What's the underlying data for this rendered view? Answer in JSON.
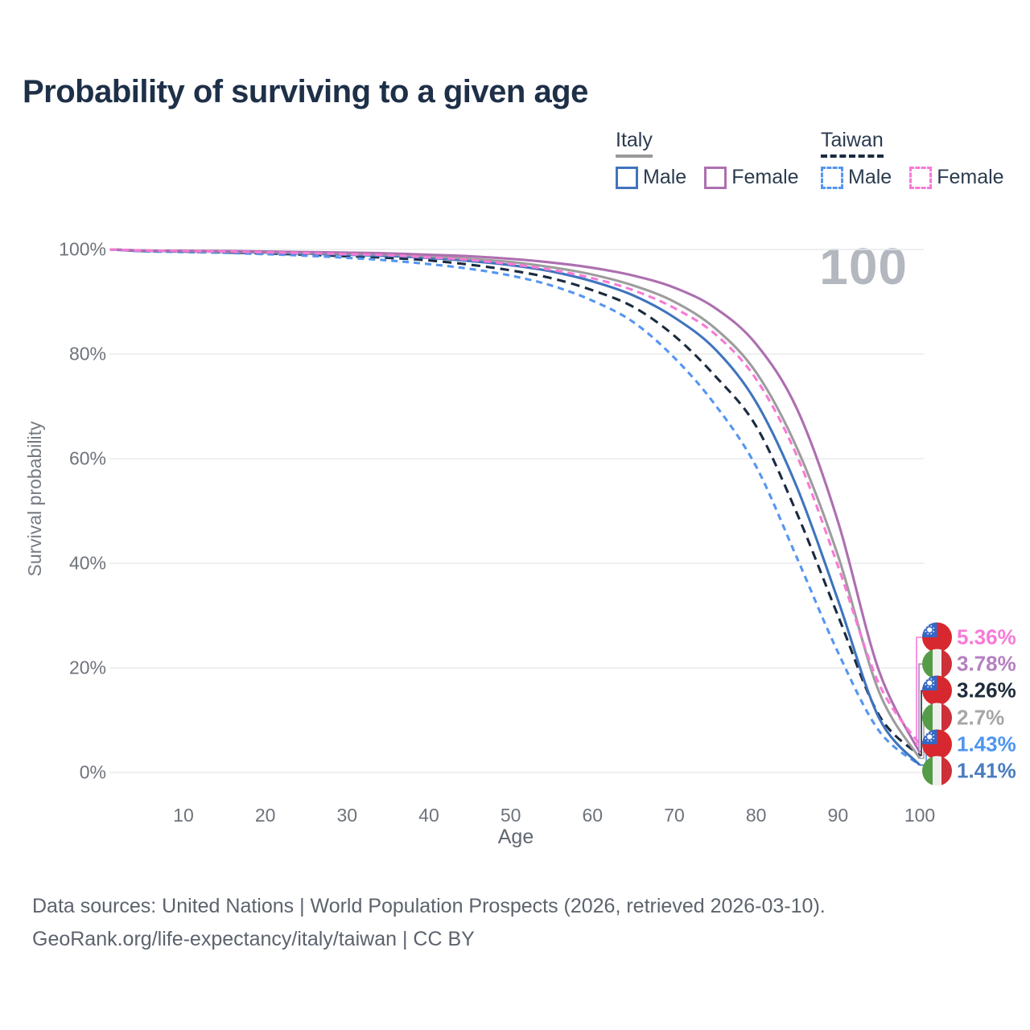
{
  "title": "Probability of surviving to a given age",
  "watermark_age": "100",
  "legend": {
    "groups": [
      {
        "label": "Italy",
        "underline": "solid",
        "underline_color": "#9a9a9a",
        "items": [
          {
            "label": "Male",
            "color": "#3f74bd",
            "dashed": false
          },
          {
            "label": "Female",
            "color": "#ad6fb0",
            "dashed": false
          }
        ]
      },
      {
        "label": "Taiwan",
        "underline": "dashed",
        "underline_color": "#1b2a40",
        "items": [
          {
            "label": "Male",
            "color": "#5596f0",
            "dashed": true
          },
          {
            "label": "Female",
            "color": "#f87ad6",
            "dashed": true
          }
        ]
      }
    ]
  },
  "chart_data": {
    "type": "line",
    "title": "Probability of surviving to a given age",
    "xlabel": "Age",
    "ylabel": "Survival probability",
    "x_axis": {
      "min": 1,
      "max": 100,
      "ticks": [
        10,
        20,
        30,
        40,
        50,
        60,
        70,
        80,
        90,
        100
      ]
    },
    "y_axis": {
      "min": 0,
      "max": 100,
      "tick_labels": [
        "0%",
        "20%",
        "40%",
        "60%",
        "80%",
        "100%"
      ],
      "tick_values": [
        0,
        20,
        40,
        60,
        80,
        100
      ]
    },
    "grid": "horizontal",
    "x_ages": [
      1,
      5,
      10,
      15,
      20,
      25,
      30,
      35,
      40,
      45,
      50,
      55,
      60,
      65,
      70,
      75,
      80,
      85,
      90,
      95,
      100
    ],
    "series": [
      {
        "name": "Taiwan",
        "country": "Taiwan",
        "sex": "Both",
        "style": "dashed",
        "color": "#1b2a40",
        "label_color": "#1e2b3d",
        "dash": "11 7",
        "end_label": "3.26%",
        "end_label_order": 2,
        "flag": "taiwan",
        "values": [
          100,
          99.7,
          99.6,
          99.45,
          99.25,
          99.0,
          98.7,
          98.4,
          97.9,
          97.1,
          96.0,
          94.5,
          92.2,
          89.0,
          83.5,
          75.8,
          66.2,
          49.5,
          30.0,
          11.0,
          3.26
        ]
      },
      {
        "name": "Taiwan Male",
        "country": "Taiwan",
        "sex": "Male",
        "style": "dashed",
        "color": "#5596f0",
        "label_color": "#4d95f2",
        "dash": "8 6",
        "end_label": "1.43%",
        "end_label_order": 4,
        "flag": "taiwan",
        "values": [
          100,
          99.65,
          99.5,
          99.35,
          99.1,
          98.8,
          98.4,
          97.9,
          97.2,
          96.3,
          95.0,
          93.1,
          90.2,
          86.1,
          79.3,
          70.3,
          58.5,
          41.0,
          23.0,
          8.0,
          1.43
        ]
      },
      {
        "name": "Italy Male",
        "country": "Italy",
        "sex": "Male",
        "style": "solid",
        "color": "#3f74bd",
        "label_color": "#4a7cc0",
        "dash": null,
        "end_label": "1.41%",
        "end_label_order": 5,
        "flag": "italy",
        "values": [
          100,
          99.75,
          99.65,
          99.55,
          99.4,
          99.2,
          99.0,
          98.75,
          98.4,
          97.8,
          97.0,
          95.8,
          93.9,
          91.2,
          87.0,
          80.9,
          70.8,
          54.5,
          33.0,
          10.5,
          1.41
        ]
      },
      {
        "name": "Italy",
        "country": "Italy",
        "sex": "Both",
        "style": "solid",
        "color": "#9d9d9d",
        "label_color": "#a6a6a6",
        "dash": null,
        "end_label": "2.7%",
        "end_label_order": 3,
        "flag": "italy",
        "values": [
          100,
          99.8,
          99.7,
          99.6,
          99.5,
          99.35,
          99.2,
          99.0,
          98.7,
          98.2,
          97.6,
          96.6,
          95.2,
          93.1,
          90.0,
          84.9,
          76.5,
          62.0,
          41.5,
          15.5,
          2.7
        ]
      },
      {
        "name": "Italy Female",
        "country": "Italy",
        "sex": "Female",
        "style": "solid",
        "color": "#ad6fb0",
        "label_color": "#b57fc1",
        "dash": null,
        "end_label": "3.78%",
        "end_label_order": 1,
        "flag": "italy",
        "values": [
          100,
          99.8,
          99.75,
          99.7,
          99.6,
          99.5,
          99.4,
          99.25,
          99.0,
          98.7,
          98.2,
          97.5,
          96.5,
          95.0,
          92.7,
          88.8,
          81.9,
          69.5,
          48.0,
          19.5,
          3.78
        ]
      },
      {
        "name": "Taiwan Female",
        "country": "Taiwan",
        "sex": "Female",
        "style": "dashed",
        "color": "#f87ad6",
        "label_color": "#f87ad6",
        "dash": "9 6",
        "end_label": "5.36%",
        "end_label_order": 0,
        "flag": "taiwan",
        "values": [
          100,
          99.8,
          99.7,
          99.6,
          99.45,
          99.3,
          99.1,
          98.9,
          98.5,
          98.0,
          97.2,
          96.1,
          94.5,
          92.2,
          88.8,
          83.8,
          75.2,
          60.5,
          39.5,
          17.0,
          5.36
        ]
      }
    ]
  },
  "footer": {
    "line1": "Data sources: United Nations | World Population Prospects (2026, retrieved 2026-03-10).",
    "line2": "GeoRank.org/life-expectancy/italy/taiwan | CC BY"
  }
}
